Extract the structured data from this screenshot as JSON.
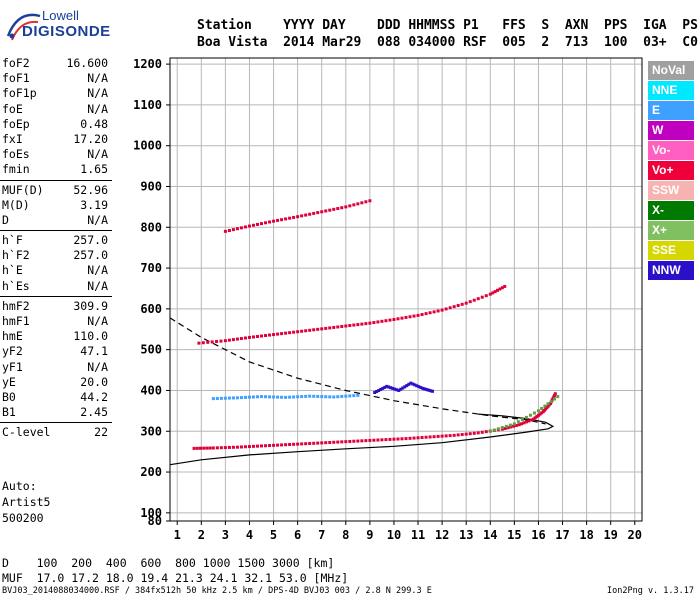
{
  "logo": {
    "line1": "Lowell",
    "line2": "DIGISONDE"
  },
  "header": {
    "line1": "Station    YYYY DAY    DDD HHMMSS P1   FFS  S  AXN  PPS  IGA  PS",
    "line2": "Boa Vista  2014 Mar29  088 034000 RSF  005  2  713  100  03+  C0"
  },
  "params": [
    [
      {
        "label": "foF2",
        "value": "16.600"
      },
      {
        "label": "foF1",
        "value": "N/A"
      },
      {
        "label": "foF1p",
        "value": "N/A"
      },
      {
        "label": "foE",
        "value": "N/A"
      },
      {
        "label": "foEp",
        "value": "0.48"
      },
      {
        "label": "fxI",
        "value": "17.20"
      },
      {
        "label": "foEs",
        "value": "N/A"
      },
      {
        "label": "fmin",
        "value": "1.65"
      }
    ],
    [
      {
        "label": "MUF(D)",
        "value": "52.96"
      },
      {
        "label": "M(D)",
        "value": "3.19"
      },
      {
        "label": "D",
        "value": "N/A"
      }
    ],
    [
      {
        "label": "h`F",
        "value": "257.0"
      },
      {
        "label": "h`F2",
        "value": "257.0"
      },
      {
        "label": "h`E",
        "value": "N/A"
      },
      {
        "label": "h`Es",
        "value": "N/A"
      }
    ],
    [
      {
        "label": "hmF2",
        "value": "309.9"
      },
      {
        "label": "hmF1",
        "value": "N/A"
      },
      {
        "label": "hmE",
        "value": "110.0"
      },
      {
        "label": "yF2",
        "value": "47.1"
      },
      {
        "label": "yF1",
        "value": "N/A"
      },
      {
        "label": "yE",
        "value": "20.0"
      },
      {
        "label": "B0",
        "value": "44.2"
      },
      {
        "label": "B1",
        "value": "2.45"
      }
    ],
    [
      {
        "label": "C-level",
        "value": "22"
      }
    ]
  ],
  "auto": {
    "l1": "Auto:",
    "l2": "Artist5",
    "l3": "500200"
  },
  "legend": [
    {
      "name": "NoVal",
      "color": "#a0a0a0"
    },
    {
      "name": "NNE",
      "color": "#00e8ff"
    },
    {
      "name": "E",
      "color": "#3ea0ff"
    },
    {
      "name": "W",
      "color": "#c000c0"
    },
    {
      "name": "Vo-",
      "color": "#ff5fc0"
    },
    {
      "name": "Vo+",
      "color": "#f0003a"
    },
    {
      "name": "SSW",
      "color": "#f7b2b2"
    },
    {
      "name": "X-",
      "color": "#007a00"
    },
    {
      "name": "X+",
      "color": "#80c060"
    },
    {
      "name": "SSE",
      "color": "#d6d600"
    },
    {
      "name": "NNW",
      "color": "#2a10c8"
    }
  ],
  "footer": {
    "line1": "D    100  200  400  600  800 1000 1500 3000 [km]",
    "line2": "MUF  17.0 17.2 18.0 19.4 21.3 24.1 32.1 53.0 [MHz]",
    "line3": "BVJ03_2014088034000.RSF / 384fx512h 50 kHz 2.5 km / DPS-4D BVJ03 003 / 2.8 N 299.3 E",
    "version": "Ion2Png v. 1.3.17"
  },
  "chart_data": {
    "type": "scatter",
    "xlim": [
      0.7,
      20.3
    ],
    "ylim": [
      80,
      1215
    ],
    "x_ticks": [
      1,
      2,
      3,
      4,
      5,
      6,
      7,
      8,
      9,
      10,
      11,
      12,
      13,
      14,
      15,
      16,
      17,
      18,
      19,
      20
    ],
    "y_ticks": [
      80,
      100,
      200,
      300,
      400,
      500,
      600,
      700,
      800,
      900,
      1000,
      1100,
      1200
    ],
    "grid": true,
    "series": [
      {
        "name": "Vo+",
        "color": "#e0003a",
        "x": [
          1.7,
          2.5,
          3.5,
          4.5,
          5.5,
          6.5,
          7.5,
          8.5,
          9.5,
          10.5,
          11.5,
          12.5,
          13.5,
          14.5,
          15.2,
          15.8,
          16.2,
          16.5,
          16.7
        ],
        "y": [
          258,
          259,
          261,
          264,
          267,
          270,
          273,
          276,
          279,
          282,
          286,
          290,
          296,
          305,
          316,
          330,
          348,
          368,
          392
        ]
      },
      {
        "name": "Vo+",
        "color": "#e0003a",
        "x": [
          1.9,
          3,
          4,
          5,
          6,
          7,
          8,
          9,
          10,
          11,
          12,
          13,
          14,
          14.6
        ],
        "y": [
          516,
          522,
          530,
          537,
          544,
          551,
          558,
          565,
          574,
          584,
          597,
          614,
          636,
          655
        ]
      },
      {
        "name": "Vo+",
        "color": "#e0003a",
        "x": [
          3,
          4,
          5,
          6,
          7,
          8,
          9
        ],
        "y": [
          790,
          803,
          815,
          826,
          838,
          850,
          865
        ]
      },
      {
        "name": "X+",
        "color": "#60a040",
        "x": [
          14,
          15,
          16,
          16.8
        ],
        "y": [
          300,
          318,
          350,
          385
        ]
      },
      {
        "name": "NNW",
        "color": "#2a10c8",
        "x": [
          9.2,
          9.7,
          10.2,
          10.7,
          11.2,
          11.6
        ],
        "y": [
          395,
          410,
          400,
          418,
          405,
          398
        ]
      },
      {
        "name": "E",
        "color": "#3ea0ff",
        "x": [
          2.5,
          3.5,
          4.5,
          5.5,
          6.5,
          7.5,
          8.5
        ],
        "y": [
          380,
          382,
          385,
          383,
          386,
          384,
          388
        ]
      }
    ],
    "profile_solid": {
      "x": [
        0.7,
        2,
        4,
        6,
        8,
        10,
        12,
        14,
        15.5,
        16.4,
        16.6,
        16.3,
        15.5,
        14.5,
        13.5
      ],
      "y": [
        218,
        230,
        242,
        250,
        257,
        263,
        272,
        286,
        298,
        306,
        312,
        322,
        331,
        338,
        342
      ]
    },
    "profile_dashed": {
      "x": [
        0.7,
        2,
        4,
        6,
        8,
        10,
        12,
        14,
        15.5,
        16.3
      ],
      "y": [
        578,
        530,
        470,
        430,
        400,
        375,
        355,
        338,
        328,
        318
      ]
    }
  }
}
